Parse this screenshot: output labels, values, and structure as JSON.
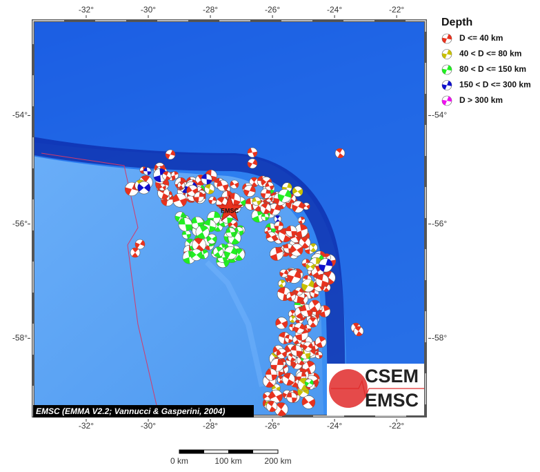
{
  "map": {
    "xlim": [
      -33.71,
      -21.07
    ],
    "ylim": [
      -59.3,
      -52.17
    ],
    "xticks": [
      {
        "value": -32,
        "label": "-32°"
      },
      {
        "value": -30,
        "label": "-30°"
      },
      {
        "value": -28,
        "label": "-28°"
      },
      {
        "value": -26,
        "label": "-26°"
      },
      {
        "value": -24,
        "label": "-24°"
      },
      {
        "value": -22,
        "label": "-22°"
      }
    ],
    "yticks": [
      {
        "value": -54,
        "label": "-54°"
      },
      {
        "value": -56,
        "label": "-56°"
      },
      {
        "value": -58,
        "label": "-58°"
      }
    ]
  },
  "legend": {
    "title": "Depth",
    "items": [
      {
        "label": "D <= 40 km",
        "color": "#e8321e"
      },
      {
        "label": "40 < D <= 80 km",
        "color": "#c8c000"
      },
      {
        "label": "80 < D <= 150 km",
        "color": "#22ee22"
      },
      {
        "label": "150 < D <= 300 km",
        "color": "#1010cc"
      },
      {
        "label": "D > 300 km",
        "color": "#ee10ee"
      }
    ]
  },
  "epicenter_label": "EMSC",
  "attribution": "EMSC (EMMA V2.2; Vannucci & Gasperini, 2004)",
  "scale_bar": {
    "labels": [
      "0 km",
      "100 km",
      "200 km"
    ]
  },
  "logo": {
    "top": "CSEM",
    "bottom": "EMSC"
  }
}
